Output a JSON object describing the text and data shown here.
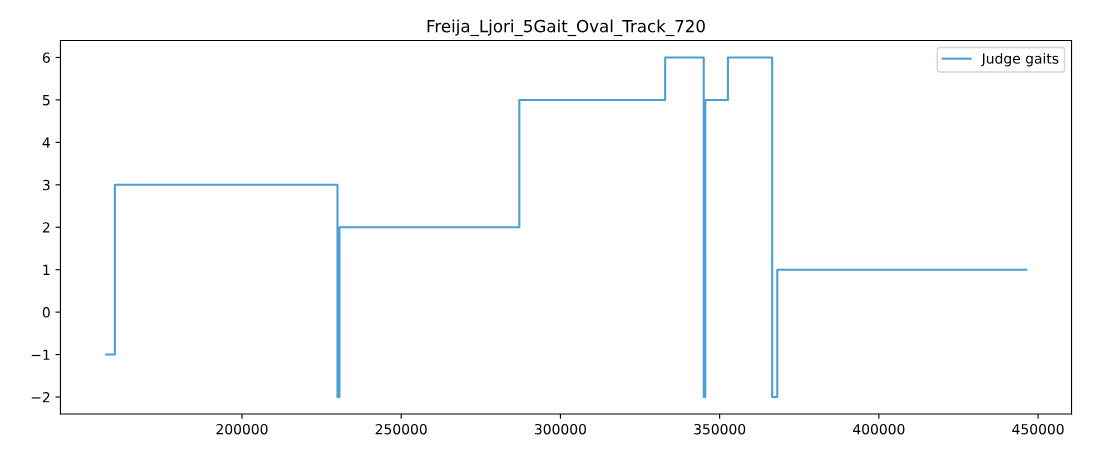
{
  "chart_data": {
    "type": "step",
    "title": "Freija_Ljori_5Gait_Oval_Track_720",
    "x": [
      157400,
      160100,
      230000,
      230600,
      287100,
      332900,
      345000,
      345500,
      352600,
      366500,
      368100,
      446300
    ],
    "series": [
      {
        "name": "Judge gaits",
        "color": "#4a9fd4",
        "values": [
          -1,
          3,
          -2,
          2,
          5,
          6,
          -2,
          5,
          6,
          -2,
          1,
          1
        ]
      }
    ],
    "xlim": [
      143000,
      460500
    ],
    "xticks": [
      200000,
      250000,
      300000,
      350000,
      400000,
      450000
    ],
    "ylim": [
      -2.4,
      6.4
    ],
    "yticks": [
      {
        "value": -2,
        "label": "−2"
      },
      {
        "value": -1,
        "label": "−1"
      },
      0,
      1,
      2,
      3,
      4,
      5,
      6
    ],
    "legend": "top right",
    "grid": false
  }
}
